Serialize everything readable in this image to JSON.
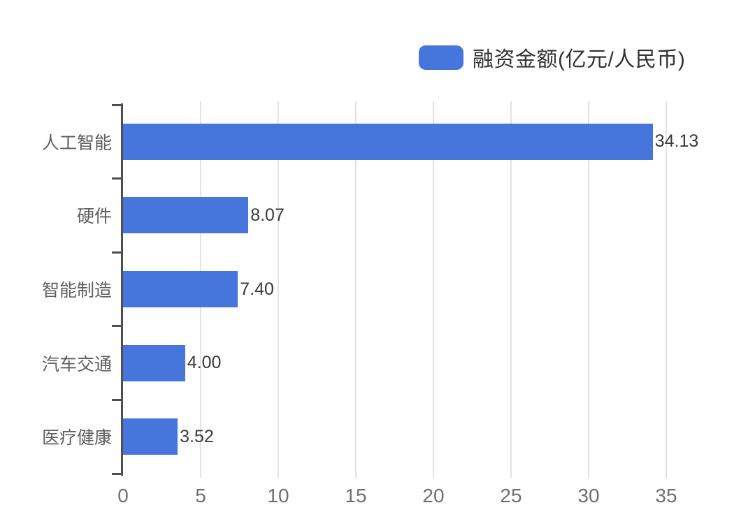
{
  "chart_data": {
    "type": "bar",
    "orientation": "horizontal",
    "title": "",
    "legend_label": "融资金额(亿元/人民币)",
    "legend_position": "top-right",
    "series_name": "融资金额(亿元/人民币)",
    "categories": [
      "人工智能",
      "硬件",
      "智能制造",
      "汽车交通",
      "医疗健康"
    ],
    "values": [
      34.13,
      8.07,
      7.4,
      4.0,
      3.52
    ],
    "value_labels": [
      "34.13",
      "8.07",
      "7.40",
      "4.00",
      "3.52"
    ],
    "xlabel": "",
    "ylabel": "",
    "xlim": [
      0,
      35
    ],
    "xticks": [
      0,
      5,
      10,
      15,
      20,
      25,
      30,
      35
    ],
    "grid": true,
    "value_labels_shown": true
  },
  "colors": {
    "bar": "#4676DB",
    "axis": "#4f4f4f",
    "gridline": "#e3e3e3",
    "value_label": "#3a3a3a",
    "category_label": "#5f5f5f",
    "tick_label": "#6f6f6f",
    "legend_text": "#333333",
    "background": "#ffffff"
  }
}
